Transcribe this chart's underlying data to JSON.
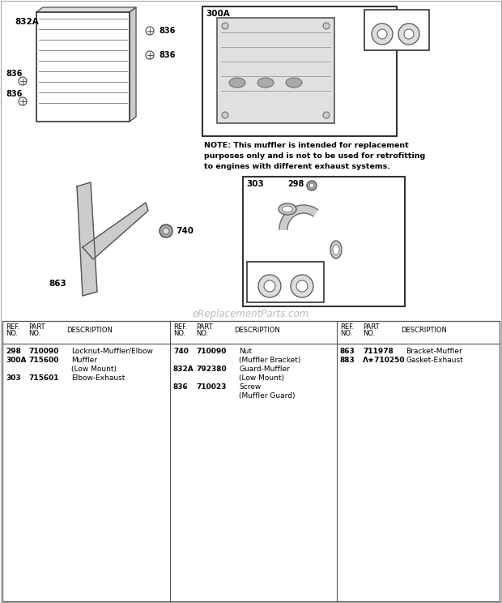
{
  "bg_color": "#ffffff",
  "watermark": "eReplacementParts.com",
  "note_text": "NOTE: This muffler is intended for replacement\npurposes only and is not to be used for retrofitting\nto engines with different exhaust systems.",
  "col1_data": [
    [
      "298",
      "710090",
      "Locknut-Muffler/Elbow"
    ],
    [
      "300A",
      "715600",
      "Muffler"
    ],
    [
      "",
      "",
      "(Low Mount)"
    ],
    [
      "303",
      "715601",
      "Elbow-Exhaust"
    ]
  ],
  "col2_data": [
    [
      "740",
      "710090",
      "Nut"
    ],
    [
      "",
      "",
      "(Muffler Bracket)"
    ],
    [
      "832A",
      "792380",
      "Guard-Muffler"
    ],
    [
      "",
      "",
      "(Low Mount)"
    ],
    [
      "836",
      "710023",
      "Screw"
    ],
    [
      "",
      "",
      "(Muffler Guard)"
    ]
  ],
  "col3_data": [
    [
      "863",
      "711978",
      "Bracket-Muffler"
    ],
    [
      "883",
      "^*710250",
      "Gasket-Exhaust"
    ]
  ]
}
